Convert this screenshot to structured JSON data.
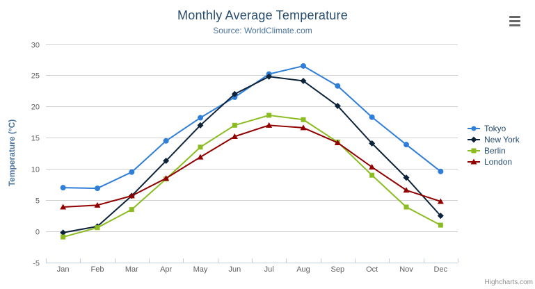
{
  "header": {
    "title": "Monthly Average Temperature",
    "subtitle": "Source: WorldClimate.com"
  },
  "menu": {
    "icon": "hamburger-menu-icon"
  },
  "credits": {
    "label": "Highcharts.com"
  },
  "chart_data": {
    "type": "line",
    "title": "Monthly Average Temperature",
    "subtitle": "Source: WorldClimate.com",
    "categories": [
      "Jan",
      "Feb",
      "Mar",
      "Apr",
      "May",
      "Jun",
      "Jul",
      "Aug",
      "Sep",
      "Oct",
      "Nov",
      "Dec"
    ],
    "series": [
      {
        "name": "Tokyo",
        "color": "#2f7ed8",
        "marker": "circle",
        "values": [
          7.0,
          6.9,
          9.5,
          14.5,
          18.2,
          21.5,
          25.2,
          26.5,
          23.3,
          18.3,
          13.9,
          9.6
        ]
      },
      {
        "name": "New York",
        "color": "#0d233a",
        "marker": "diamond",
        "values": [
          -0.2,
          0.8,
          5.7,
          11.3,
          17.0,
          22.0,
          24.8,
          24.1,
          20.1,
          14.1,
          8.6,
          2.5
        ]
      },
      {
        "name": "Berlin",
        "color": "#8bbc21",
        "marker": "square",
        "values": [
          -0.9,
          0.6,
          3.5,
          8.4,
          13.5,
          17.0,
          18.6,
          17.9,
          14.3,
          9.0,
          3.9,
          1.0
        ]
      },
      {
        "name": "London",
        "color": "#910000",
        "marker": "triangle",
        "values": [
          3.9,
          4.2,
          5.7,
          8.5,
          11.9,
          15.2,
          17.0,
          16.6,
          14.2,
          10.3,
          6.6,
          4.8
        ]
      }
    ],
    "xlabel": "",
    "ylabel": "Temperature (°C)",
    "ylim": [
      -5,
      30
    ],
    "yticks": [
      -5,
      0,
      5,
      10,
      15,
      20,
      25,
      30
    ],
    "grid": true,
    "legend_position": "right",
    "colors": {
      "title": "#274b6d",
      "subtitle": "#4d759e",
      "axis_labels": "#606060",
      "gridline": "#d0d0d0",
      "axis_line": "#c0d0e0",
      "credits": "#909090"
    }
  }
}
